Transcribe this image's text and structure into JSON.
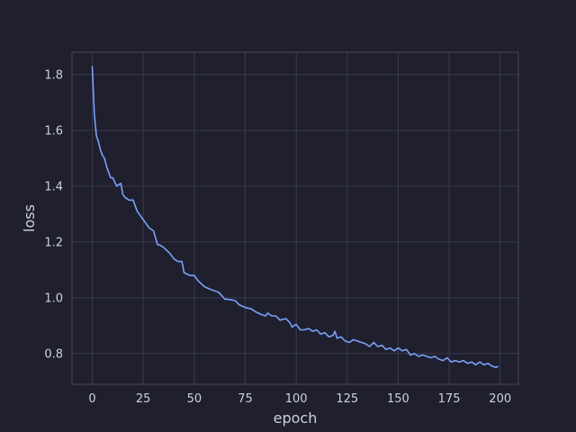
{
  "colors": {
    "background": "#1f1f2e",
    "grid": "#3a3a52",
    "spine": "#44445c",
    "text": "#cdd0e0",
    "line": "#7aa2f7"
  },
  "chart_data": {
    "type": "line",
    "title": "",
    "xlabel": "epoch",
    "ylabel": "loss",
    "xlim": [
      -9.95,
      208.95
    ],
    "ylim": [
      0.69,
      1.88
    ],
    "xticks": [
      0,
      25,
      50,
      75,
      100,
      125,
      150,
      175,
      200
    ],
    "yticks": [
      0.8,
      1.0,
      1.2,
      1.4,
      1.6,
      1.8
    ],
    "grid": true,
    "legend": "none",
    "series": [
      {
        "color": "#7aa2f7",
        "x": [
          0,
          1,
          2,
          3,
          4,
          5,
          6,
          7,
          8,
          9,
          10,
          12,
          14,
          15,
          16,
          18,
          20,
          22,
          23,
          25,
          28,
          30,
          32,
          33,
          35,
          38,
          40,
          42,
          44,
          45,
          48,
          50,
          52,
          55,
          58,
          62,
          65,
          66,
          70,
          72,
          75,
          78,
          80,
          83,
          85,
          86,
          88,
          90,
          92,
          95,
          97,
          98,
          100,
          102,
          104,
          106,
          108,
          110,
          112,
          114,
          116,
          118,
          119,
          120,
          122,
          124,
          126,
          128,
          130,
          132,
          134,
          136,
          138,
          140,
          142,
          144,
          146,
          148,
          150,
          152,
          154,
          156,
          158,
          160,
          162,
          164,
          166,
          168,
          170,
          172,
          174,
          176,
          178,
          180,
          182,
          184,
          186,
          188,
          190,
          192,
          194,
          196,
          198,
          199
        ],
        "y": [
          1.83,
          1.66,
          1.58,
          1.56,
          1.53,
          1.51,
          1.5,
          1.47,
          1.45,
          1.43,
          1.43,
          1.4,
          1.41,
          1.37,
          1.36,
          1.35,
          1.35,
          1.31,
          1.3,
          1.28,
          1.25,
          1.24,
          1.19,
          1.19,
          1.18,
          1.16,
          1.14,
          1.13,
          1.13,
          1.09,
          1.08,
          1.08,
          1.06,
          1.04,
          1.03,
          1.02,
          0.995,
          0.995,
          0.99,
          0.975,
          0.965,
          0.96,
          0.95,
          0.94,
          0.935,
          0.945,
          0.935,
          0.935,
          0.92,
          0.925,
          0.91,
          0.895,
          0.905,
          0.885,
          0.885,
          0.89,
          0.88,
          0.885,
          0.87,
          0.875,
          0.86,
          0.865,
          0.88,
          0.855,
          0.86,
          0.845,
          0.84,
          0.85,
          0.845,
          0.84,
          0.835,
          0.825,
          0.84,
          0.825,
          0.83,
          0.815,
          0.82,
          0.81,
          0.82,
          0.81,
          0.815,
          0.795,
          0.8,
          0.79,
          0.795,
          0.79,
          0.785,
          0.79,
          0.78,
          0.775,
          0.785,
          0.77,
          0.775,
          0.77,
          0.775,
          0.765,
          0.77,
          0.76,
          0.77,
          0.76,
          0.765,
          0.755,
          0.75,
          0.755
        ]
      }
    ]
  }
}
